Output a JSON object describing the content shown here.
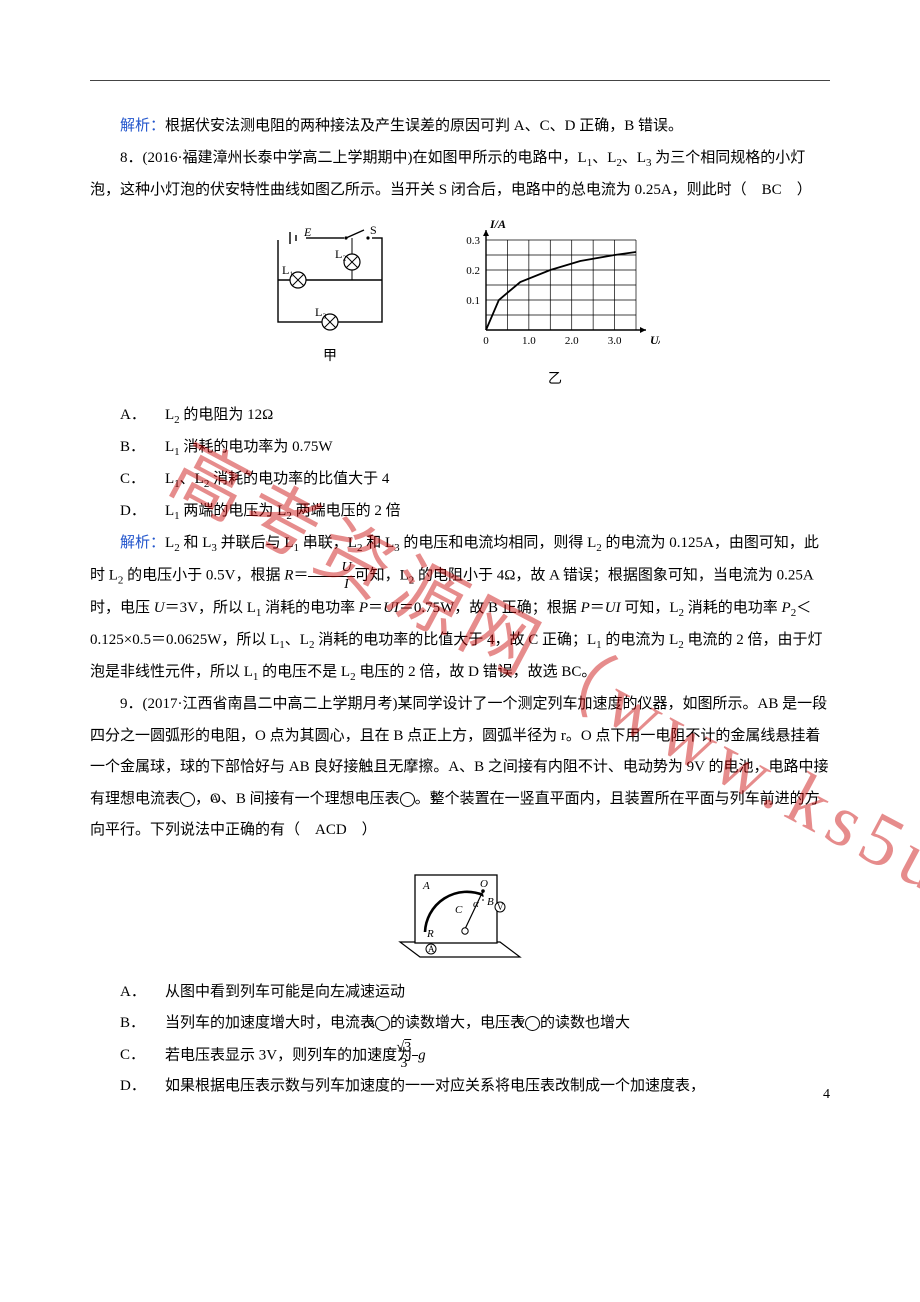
{
  "colors": {
    "text": "#000000",
    "analysis_label": "#2255cc",
    "watermark": "rgba(200,0,0,0.45)",
    "rule": "#444444",
    "background": "#ffffff"
  },
  "typography": {
    "body_fontsize_pt": 11,
    "line_height": 2.1,
    "family": "SimSun / 宋体"
  },
  "analysis_7": {
    "label": "解析：",
    "text": "根据伏安法测电阻的两种接法及产生误差的原因可判 A、C、D 正确，B 错误。"
  },
  "q8": {
    "number": "8．",
    "source": "(2016·福建漳州长泰中学高二上学期期中)",
    "stem_a": "在如图甲所示的电路中，L",
    "stem_b": "、L",
    "stem_c": "、L",
    "stem_d": " 为三个相同规格的小灯泡，这种小灯泡的伏安特性曲线如图乙所示。当开关 S 闭合后，电路中的总电流为 0.25A，则此时（　BC　）",
    "sub1": "1",
    "sub2": "2",
    "sub3": "3",
    "options": {
      "A": {
        "letter": "A．",
        "pre": "L",
        "sub": "2",
        "post": " 的电阻为 12Ω"
      },
      "B": {
        "letter": "B．",
        "pre": "L",
        "sub": "1",
        "post": " 消耗的电功率为 0.75W"
      },
      "C": {
        "letter": "C．",
        "pre1": "L",
        "sub1": "1",
        "mid": "、L",
        "sub2": "2",
        "post": " 消耗的电功率的比值大于 4"
      },
      "D": {
        "letter": "D．",
        "pre1": "L",
        "sub1": "1",
        "mid": " 两端的电压为 L",
        "sub2": "2",
        "post": " 两端电压的 2 倍"
      }
    },
    "analysis": {
      "label": "解析：",
      "p1a": "L",
      "p1s2": "2",
      "p1b": " 和 L",
      "p1s3": "3",
      "p1c": " 并联后与 L",
      "p1s1": "1",
      "p1d": " 串联，L",
      "p1s2b": "2",
      "p1e": " 和 L",
      "p1s3b": "3",
      "p1f": " 的电压和电流均相同，则得 L",
      "p1s2c": "2",
      "p1g": " 的电流为 0.125A，由图可知，此时 L",
      "p1s2d": "2",
      "p1h": " 的电压小于 0.5V，根据 ",
      "p1_R": "R",
      "p1_eq": "＝",
      "p1_fracU": "U",
      "p1_fracI": "I",
      "p1i": "可知，L",
      "p1s2e": "2",
      "p1j": " 的电阻小于 4Ω，故 A 错误；根据图象可知，当电流为 0.25A 时，电压 ",
      "p1_U": "U",
      "p1_eq3": "＝3V，所以 L",
      "p1_s1b": "1",
      "p1k": " 消耗的电功率 ",
      "p1_P": "P",
      "p1_eqUI": "＝",
      "p1_UI": "UI",
      "p1_075": "＝0.75W，故 B 正确；根据 ",
      "p1_P2": "P",
      "p1_eqUI2": "＝",
      "p1_UI2": "UI",
      "p1l": " 可知，L",
      "p1s2f": "2",
      "p1m": " 消耗的电功率 ",
      "p1_P22": "P",
      "p1_sub22": "2",
      "p1_lt": "＜0.125×0.5＝0.0625W，所以 L",
      "p1_s1c": "1",
      "p1n": "、L",
      "p1s2g": "2",
      "p1o": " 消耗的电功率的比值大于 4，故 C 正确；L",
      "p1_s1d": "1",
      "p1p": " 的电流为 L",
      "p1s2h": "2",
      "p1q": " 电流的 2 倍，由于灯泡是非线性元件，所以 L",
      "p1_s1e": "1",
      "p1r": " 的电压不是 L",
      "p1s2i": "2",
      "p1s": " 电压的 2 倍，故 D 错误，故选 BC。"
    },
    "circuit_labels": {
      "E": "E",
      "S": "S",
      "L1": "L₁",
      "L2": "L₂",
      "L3": "L₃",
      "cap": "甲"
    },
    "chart": {
      "type": "line",
      "x_label": "U/V",
      "y_label": "I/A",
      "x_ticks": [
        "0",
        "1.0",
        "2.0",
        "3.0"
      ],
      "y_ticks": [
        "0",
        "0.1",
        "0.2",
        "0.3"
      ],
      "xlim": [
        0,
        3.5
      ],
      "ylim": [
        0,
        0.3
      ],
      "grid_color": "#000000",
      "line_color": "#000000",
      "background_color": "#ffffff",
      "line_width": 1.8,
      "points": [
        [
          0,
          0
        ],
        [
          0.3,
          0.1
        ],
        [
          0.8,
          0.16
        ],
        [
          1.5,
          0.2
        ],
        [
          2.2,
          0.23
        ],
        [
          3.0,
          0.25
        ],
        [
          3.5,
          0.26
        ]
      ],
      "caption": "乙"
    }
  },
  "q9": {
    "number": "9．",
    "source": "(2017·江西省南昌二中高二上学期月考)",
    "stem": "某同学设计了一个测定列车加速度的仪器，如图所示。AB 是一段四分之一圆弧形的电阻，O 点为其圆心，且在 B 点正上方，圆弧半径为 r。O 点下用一电阻不计的金属线悬挂着一个金属球，球的下部恰好与 AB 良好接触且无摩擦。A、B 之间接有内阻不计、电动势为 9V 的电池，电路中接有理想电流表",
    "stem2": "，O、B 间接有一个理想电压表",
    "stem3": "。整个装置在一竖直平面内，且装置所在平面与列车前进的方向平行。下列说法中正确的有（　ACD　）",
    "meter_A": "A",
    "meter_V": "V",
    "options": {
      "A": {
        "letter": "A．",
        "text": "从图中看到列车可能是向左减速运动"
      },
      "B": {
        "letter": "B．",
        "pre": "当列车的加速度增大时，电流表",
        "mid": "的读数增大，电压表",
        "post": "的读数也增大"
      },
      "C": {
        "letter": "C．",
        "pre": "若电压表显示 3V，则列车的加速度为",
        "frac_num_pre": "√",
        "frac_num_rad": "3",
        "frac_den": "3",
        "post_italic": "g"
      },
      "D": {
        "letter": "D．",
        "text": "如果根据电压表示数与列车加速度的一一对应关系将电压表改制成一个加速度表，"
      }
    },
    "device_labels": {
      "A": "A",
      "O": "O",
      "B": "B",
      "C": "C",
      "R": "R",
      "alpha": "α",
      "ammeter": "A",
      "voltmeter": "V"
    }
  },
  "watermark_text": "高考资源网（www.ks5u.com）",
  "page_number": "4"
}
